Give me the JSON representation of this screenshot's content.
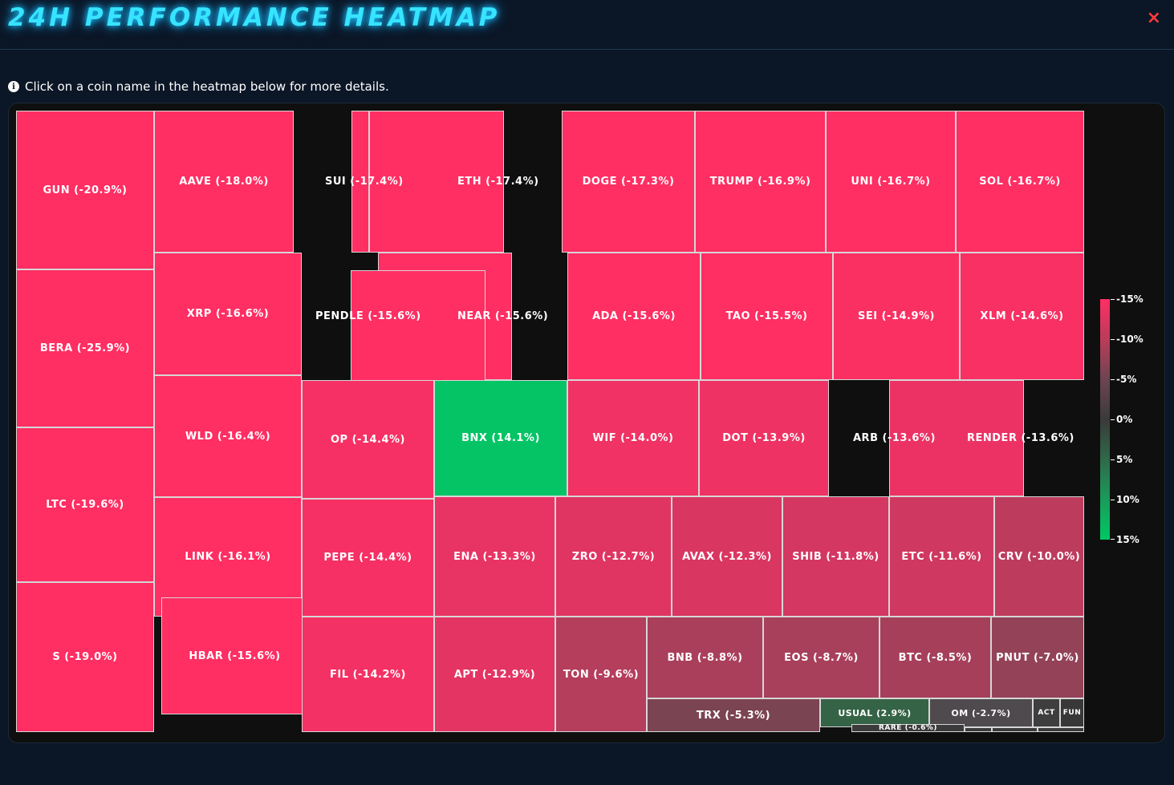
{
  "title": "24H PERFORMANCE HEATMAP",
  "close_label": "×",
  "hint": "Click on a coin name in the heatmap below for more details.",
  "info_icon": "i",
  "colors": {
    "negative": "#ff2e63",
    "positive": "#00c864",
    "neutral": "#3a3a3a",
    "title": "#37e4ff"
  },
  "legend": [
    "-15%",
    "-10%",
    "-5%",
    "0%",
    "5%",
    "10%",
    "15%"
  ],
  "tiles": [
    {
      "label": "GUN (-20.9%)",
      "change": -20.9
    },
    {
      "label": "BERA (-25.9%)",
      "change": -25.9
    },
    {
      "label": "LTC (-19.6%)",
      "change": -19.6
    },
    {
      "label": "S (-19.0%)",
      "change": -19.0
    },
    {
      "label": "AAVE (-18.0%)",
      "change": -18.0
    },
    {
      "label": "XRP (-16.6%)",
      "change": -16.6
    },
    {
      "label": "WLD (-16.4%)",
      "change": -16.4
    },
    {
      "label": "LINK (-16.1%)",
      "change": -16.1
    },
    {
      "label": "HBAR (-15.6%)",
      "change": -15.6
    },
    {
      "label": "SUI (-17.4%)",
      "change": -17.4
    },
    {
      "label": "ETH (-17.4%)",
      "change": -17.4
    },
    {
      "label": "PENDLE (-15.6%)",
      "change": -15.6
    },
    {
      "label": "NEAR (-15.6%)",
      "change": -15.6
    },
    {
      "label": "DOGE (-17.3%)",
      "change": -17.3
    },
    {
      "label": "TRUMP (-16.9%)",
      "change": -16.9
    },
    {
      "label": "UNI (-16.7%)",
      "change": -16.7
    },
    {
      "label": "SOL (-16.7%)",
      "change": -16.7
    },
    {
      "label": "ADA (-15.6%)",
      "change": -15.6
    },
    {
      "label": "TAO (-15.5%)",
      "change": -15.5
    },
    {
      "label": "SEI (-14.9%)",
      "change": -14.9
    },
    {
      "label": "XLM (-14.6%)",
      "change": -14.6
    },
    {
      "label": "OP (-14.4%)",
      "change": -14.4
    },
    {
      "label": "BNX (14.1%)",
      "change": 14.1
    },
    {
      "label": "WIF (-14.0%)",
      "change": -14.0
    },
    {
      "label": "DOT (-13.9%)",
      "change": -13.9
    },
    {
      "label": "ARB (-13.6%)",
      "change": -13.6
    },
    {
      "label": "RENDER (-13.6%)",
      "change": -13.6
    },
    {
      "label": "PEPE (-14.4%)",
      "change": -14.4
    },
    {
      "label": "ENA (-13.3%)",
      "change": -13.3
    },
    {
      "label": "ZRO (-12.7%)",
      "change": -12.7
    },
    {
      "label": "AVAX (-12.3%)",
      "change": -12.3
    },
    {
      "label": "SHIB (-11.8%)",
      "change": -11.8
    },
    {
      "label": "ETC (-11.6%)",
      "change": -11.6
    },
    {
      "label": "CRV (-10.0%)",
      "change": -10.0
    },
    {
      "label": "FIL (-14.2%)",
      "change": -14.2
    },
    {
      "label": "APT (-12.9%)",
      "change": -12.9
    },
    {
      "label": "TON (-9.6%)",
      "change": -9.6
    },
    {
      "label": "BNB (-8.8%)",
      "change": -8.8
    },
    {
      "label": "EOS (-8.7%)",
      "change": -8.7
    },
    {
      "label": "BTC (-8.5%)",
      "change": -8.5
    },
    {
      "label": "PNUT (-7.0%)",
      "change": -7.0
    },
    {
      "label": "TRX (-5.3%)",
      "change": -5.3
    },
    {
      "label": "USUAL (2.9%)",
      "change": 2.9
    },
    {
      "label": "OM (-2.7%)",
      "change": -2.7
    },
    {
      "label": "ACT",
      "change": null
    },
    {
      "label": "FUN",
      "change": null
    },
    {
      "label": "RARE (-0.6%)",
      "change": -0.6
    }
  ]
}
